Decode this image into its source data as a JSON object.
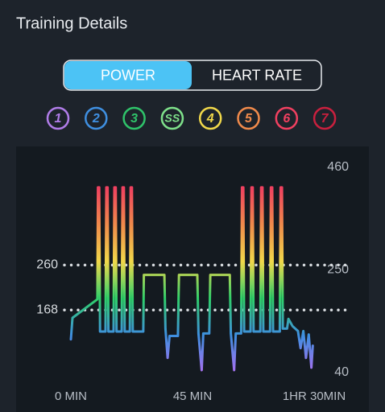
{
  "header": {
    "title": "Training Details"
  },
  "toggle": {
    "options": [
      "POWER",
      "HEART RATE"
    ],
    "active": 0
  },
  "zones": [
    {
      "label": "1",
      "color": "#b07ce8"
    },
    {
      "label": "2",
      "color": "#3f8fe0"
    },
    {
      "label": "3",
      "color": "#2fc36a"
    },
    {
      "label": "SS",
      "color": "#7ee08a"
    },
    {
      "label": "4",
      "color": "#f1d84a"
    },
    {
      "label": "5",
      "color": "#f08a4b"
    },
    {
      "label": "6",
      "color": "#f04060"
    },
    {
      "label": "7",
      "color": "#c8203e"
    }
  ],
  "chart_data": {
    "type": "line",
    "x": [
      0,
      0.6,
      9.8,
      10,
      10.5,
      10.8,
      12.8,
      13.1,
      13.6,
      13.9,
      15.8,
      16.1,
      16.6,
      16.9,
      18.8,
      19.1,
      19.6,
      19.9,
      21.8,
      22.1,
      22.6,
      22.9,
      26.8,
      27,
      34.6,
      35,
      35.8,
      36.5,
      39.6,
      40,
      46.8,
      47.2,
      48.4,
      49,
      51.2,
      51.6,
      58.8,
      59.2,
      60.4,
      61,
      63,
      63.3,
      63.8,
      64.1,
      66.5,
      66.8,
      67.3,
      67.6,
      70.1,
      70.4,
      70.9,
      71.2,
      73.7,
      74,
      74.5,
      74.8,
      77.3,
      77.6,
      78.1,
      78.4,
      80,
      80.5,
      82,
      84,
      85,
      86,
      87,
      88,
      89,
      89.5
    ],
    "values": [
      108,
      152,
      190,
      419,
      419,
      124,
      124,
      419,
      419,
      124,
      124,
      419,
      419,
      124,
      124,
      419,
      419,
      124,
      124,
      419,
      419,
      124,
      124,
      240,
      240,
      130,
      70,
      115,
      115,
      240,
      240,
      120,
      45,
      120,
      120,
      240,
      240,
      120,
      45,
      120,
      120,
      419,
      419,
      124,
      124,
      419,
      419,
      124,
      124,
      419,
      419,
      124,
      124,
      419,
      419,
      124,
      124,
      419,
      419,
      130,
      130,
      150,
      135,
      125,
      90,
      125,
      70,
      118,
      50,
      95
    ],
    "xlim": [
      0,
      90
    ],
    "xticks": [
      {
        "value": 0,
        "label": "0 MIN"
      },
      {
        "value": 45,
        "label": "45 MIN"
      },
      {
        "value": 90,
        "label": "1HR 30MIN"
      }
    ],
    "ylim": [
      40,
      460
    ],
    "yticks": [
      40,
      250,
      460
    ],
    "ref_lines": [
      260,
      168
    ],
    "gradient": [
      "#a870f0",
      "#3f8fe0",
      "#2fd06a",
      "#f1d84a",
      "#f08a4b",
      "#f04060"
    ]
  }
}
